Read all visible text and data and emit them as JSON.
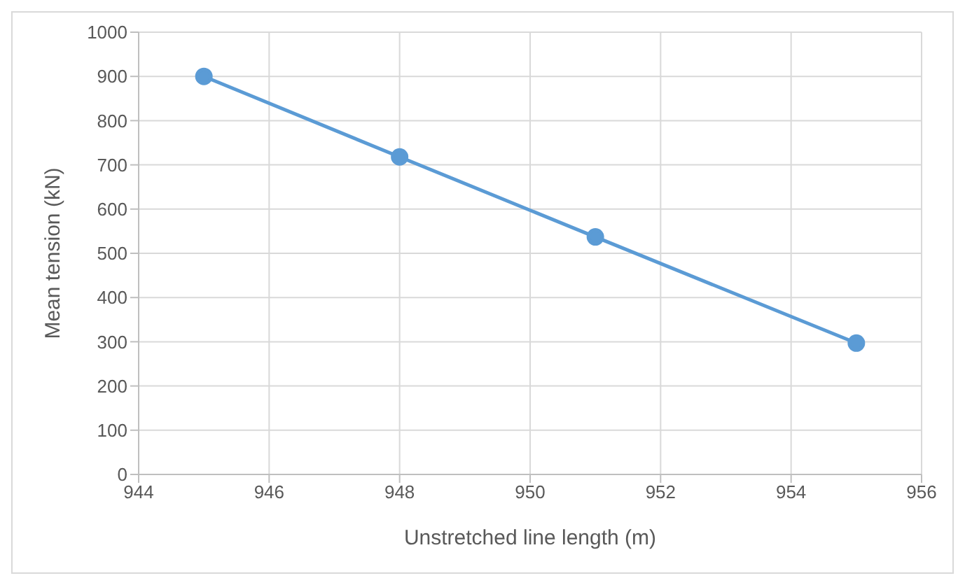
{
  "chart_data": {
    "type": "line",
    "xlabel": "Unstretched line length (m)",
    "ylabel": "Mean tension (kN)",
    "x": [
      945,
      948,
      951,
      955
    ],
    "series": [
      {
        "color": "#5b9bd5",
        "values": [
          900,
          718,
          537,
          297
        ]
      }
    ],
    "xlim": [
      944,
      956
    ],
    "xticks": [
      944,
      946,
      948,
      950,
      952,
      954,
      956
    ],
    "ylim": [
      0,
      1000
    ],
    "yticks": [
      0,
      100,
      200,
      300,
      400,
      500,
      600,
      700,
      800,
      900,
      1000
    ],
    "grid": true,
    "marker": "circle",
    "line_style": "solid",
    "legend": false
  }
}
